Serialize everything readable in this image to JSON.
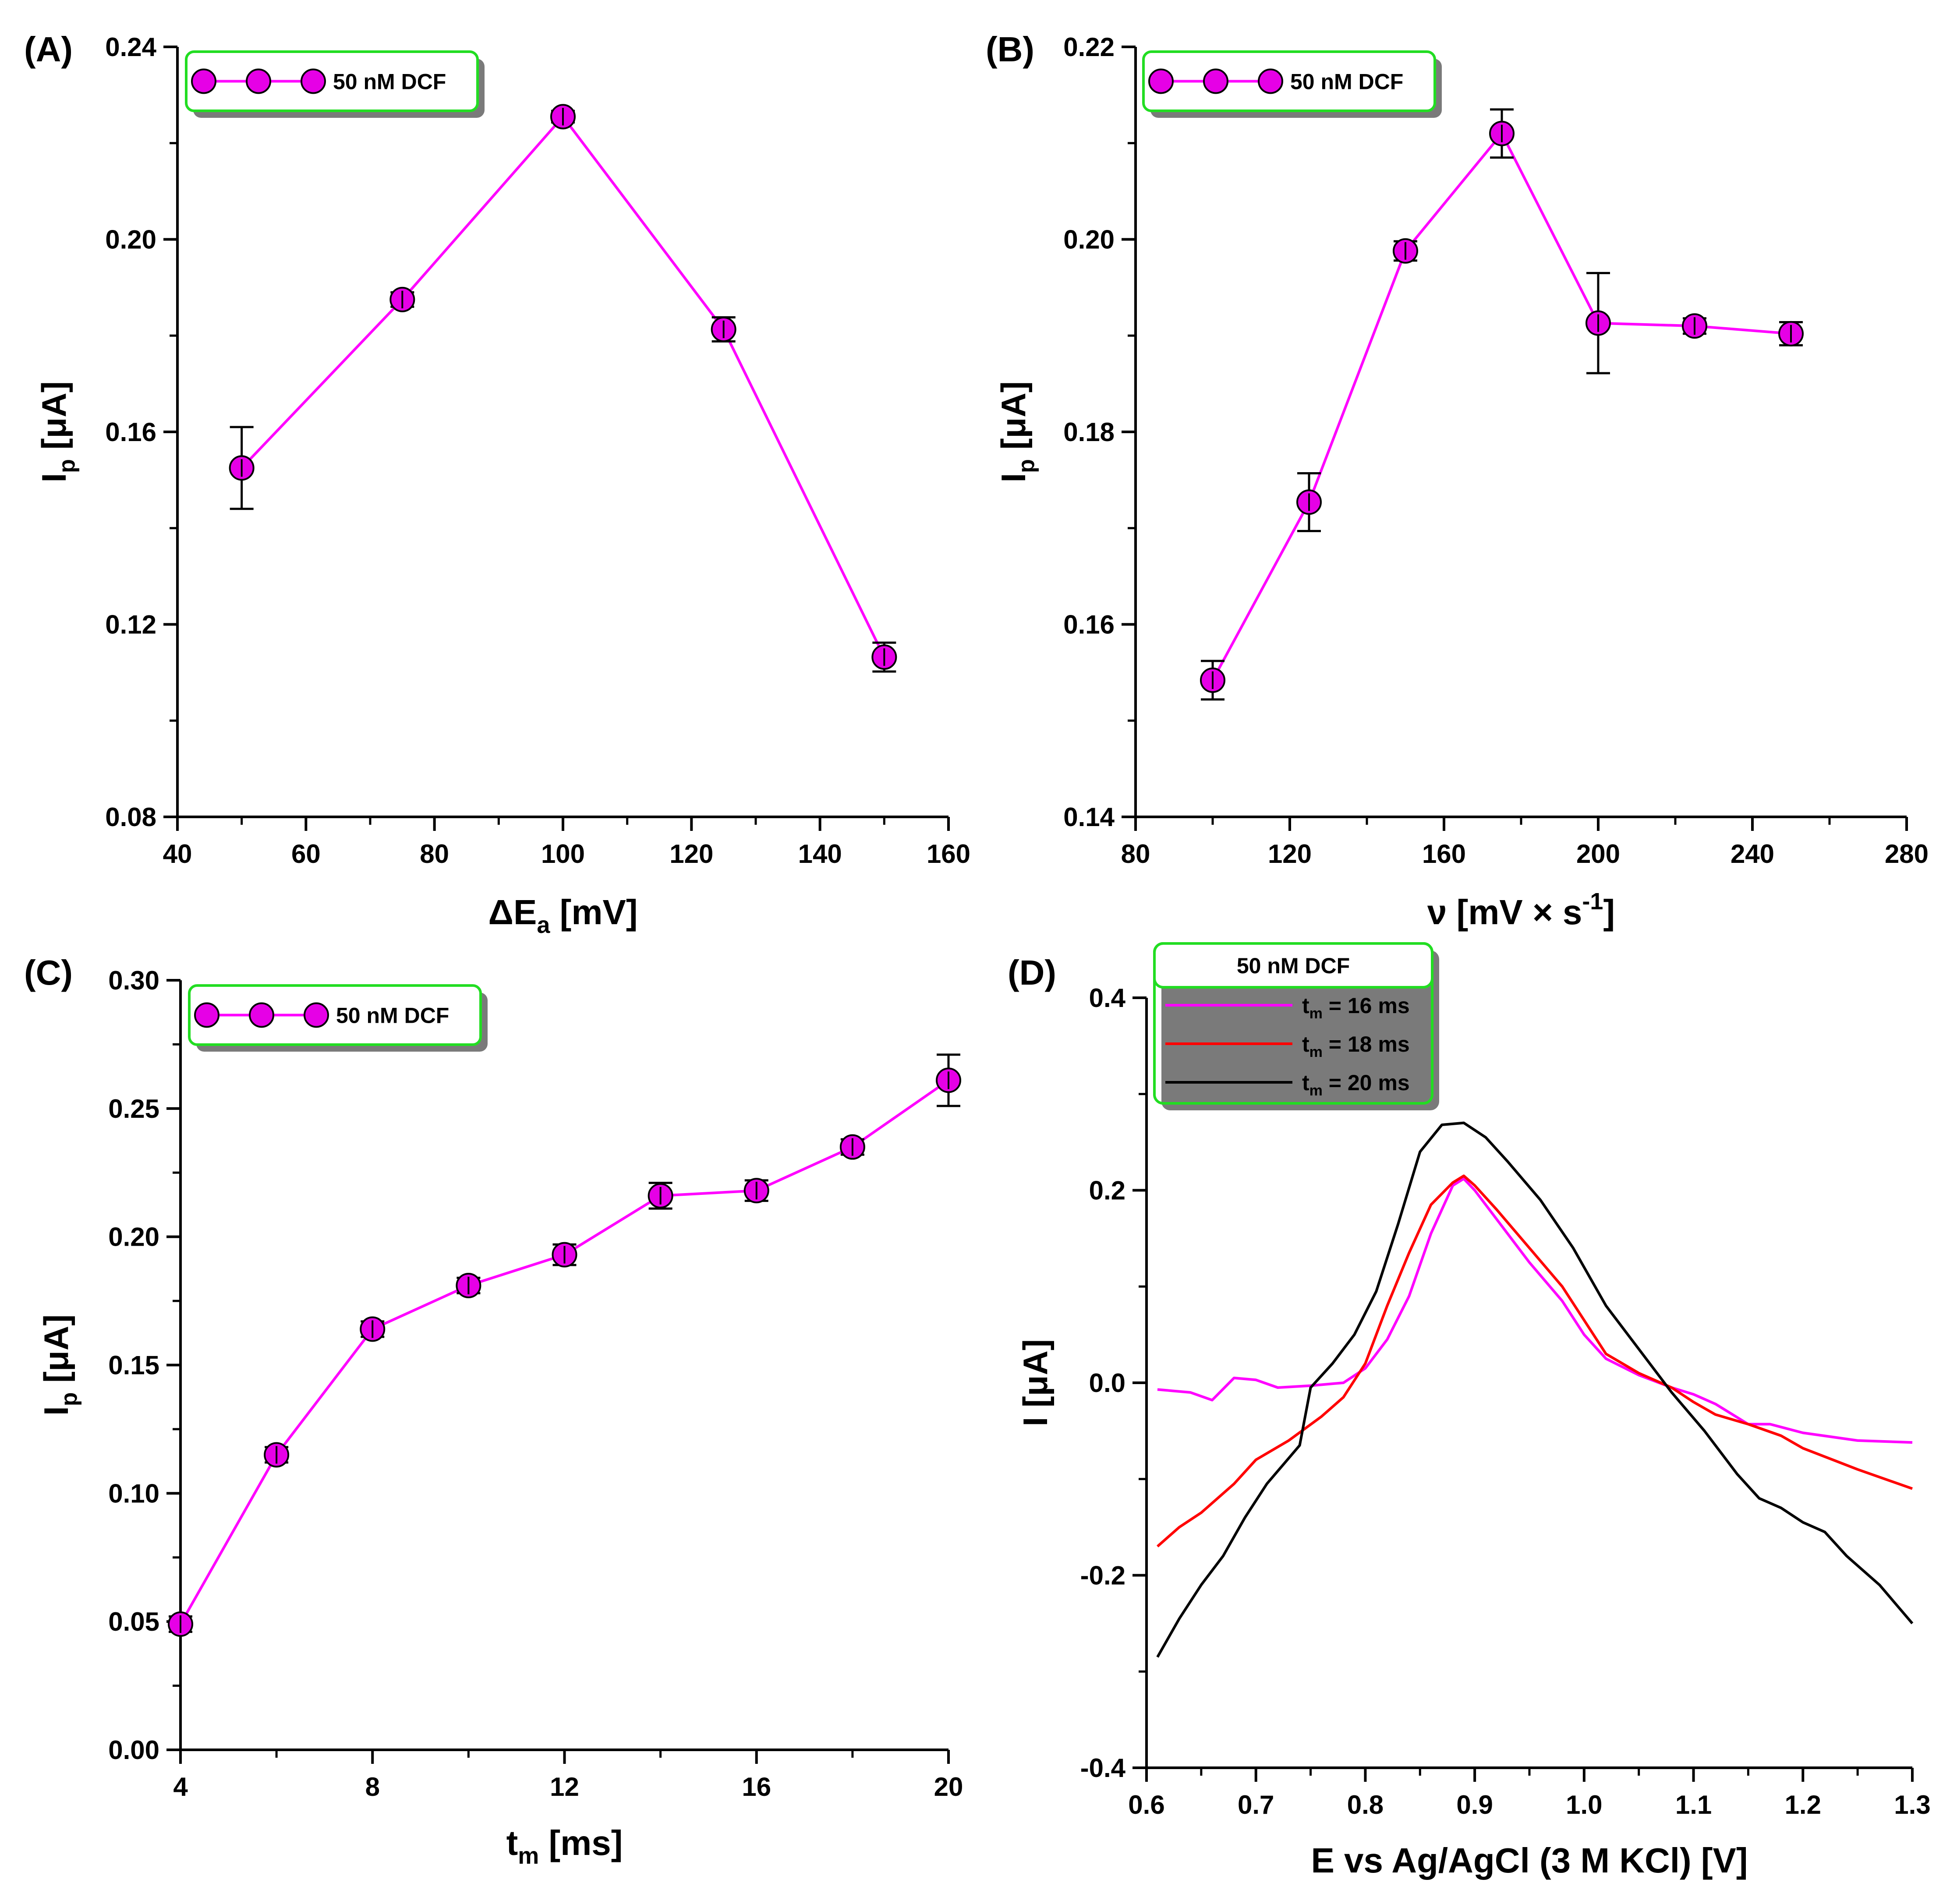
{
  "chart_data": [
    {
      "id": "A",
      "panel_label": "(A)",
      "type": "line",
      "x_label": {
        "base": "ΔE",
        "sub": "a",
        "rest": " [mV]"
      },
      "y_label": {
        "base": "I",
        "sub": "p",
        "rest": " [μA]"
      },
      "xlim": [
        40,
        160
      ],
      "ylim": [
        0.08,
        0.24
      ],
      "x_ticks": [
        40,
        60,
        80,
        100,
        120,
        140,
        160
      ],
      "x_tick_labels": [
        "40",
        "60",
        "80",
        "100",
        "120",
        "140",
        "160"
      ],
      "y_ticks": [
        0.08,
        0.12,
        0.16,
        0.2,
        0.24
      ],
      "y_tick_labels": [
        "0.08",
        "0.12",
        "0.16",
        "0.20",
        "0.24"
      ],
      "legend": [
        "50 nM DCF"
      ],
      "legend_position": "top-left",
      "series": [
        {
          "name": "50 nM DCF",
          "color": "#ff00ff",
          "marker_color": "#e600e6",
          "x": [
            50,
            75,
            100,
            125,
            150
          ],
          "y": [
            0.1525,
            0.1875,
            0.2255,
            0.1813,
            0.1132
          ],
          "err": [
            0.0085,
            0.0015,
            0.0012,
            0.0025,
            0.003
          ]
        }
      ]
    },
    {
      "id": "B",
      "panel_label": "(B)",
      "type": "line",
      "x_label": {
        "base": "ν [mV × s",
        "sup": "-1",
        "rest": "]"
      },
      "y_label": {
        "base": "I",
        "sub": "p",
        "rest": " [μA]"
      },
      "xlim": [
        80,
        280
      ],
      "ylim": [
        0.14,
        0.22
      ],
      "x_ticks": [
        80,
        120,
        160,
        200,
        240,
        280
      ],
      "x_tick_labels": [
        "80",
        "120",
        "160",
        "200",
        "240",
        "280"
      ],
      "y_ticks": [
        0.14,
        0.16,
        0.18,
        0.2,
        0.22
      ],
      "y_tick_labels": [
        "0.14",
        "0.16",
        "0.18",
        "0.20",
        "0.22"
      ],
      "legend": [
        "50 nM DCF"
      ],
      "legend_position": "top-left",
      "series": [
        {
          "name": "50 nM DCF",
          "color": "#ff00ff",
          "marker_color": "#e600e6",
          "x": [
            100,
            125,
            150,
            175,
            200,
            225,
            250
          ],
          "y": [
            0.1542,
            0.1727,
            0.1988,
            0.211,
            0.1913,
            0.191,
            0.1902
          ],
          "err": [
            0.002,
            0.003,
            0.001,
            0.0025,
            0.0052,
            0.0008,
            0.0012
          ]
        }
      ]
    },
    {
      "id": "C",
      "panel_label": "(C)",
      "type": "line",
      "x_label": {
        "base": "t",
        "sub": "m",
        "rest": " [ms]"
      },
      "y_label": {
        "base": "I",
        "sub": "p",
        "rest": " [μA]"
      },
      "xlim": [
        4,
        20
      ],
      "ylim": [
        0.0,
        0.3
      ],
      "x_ticks": [
        4,
        8,
        12,
        16,
        20
      ],
      "x_tick_labels": [
        "4",
        "8",
        "12",
        "16",
        "20"
      ],
      "y_ticks": [
        0.0,
        0.05,
        0.1,
        0.15,
        0.2,
        0.25,
        0.3
      ],
      "y_tick_labels": [
        "0.00",
        "0.05",
        "0.10",
        "0.15",
        "0.20",
        "0.25",
        "0.30"
      ],
      "legend": [
        "50 nM DCF"
      ],
      "legend_position": "top-left",
      "series": [
        {
          "name": "50 nM DCF",
          "color": "#ff00ff",
          "marker_color": "#e600e6",
          "x": [
            4,
            6,
            8,
            10,
            12,
            14,
            16,
            18,
            20
          ],
          "y": [
            0.049,
            0.115,
            0.164,
            0.181,
            0.193,
            0.216,
            0.218,
            0.235,
            0.261
          ],
          "err": [
            0.003,
            0.003,
            0.003,
            0.003,
            0.004,
            0.005,
            0.004,
            0.003,
            0.01
          ]
        }
      ]
    },
    {
      "id": "D",
      "panel_label": "(D)",
      "type": "line",
      "x_label": {
        "base": "E vs Ag/AgCl (3 M KCl) [V]"
      },
      "y_label": {
        "base": "I [μA]"
      },
      "xlim": [
        0.6,
        1.3
      ],
      "ylim": [
        -0.4,
        0.4
      ],
      "x_ticks": [
        0.6,
        0.7,
        0.8,
        0.9,
        1.0,
        1.1,
        1.2,
        1.3
      ],
      "x_tick_labels": [
        "0.6",
        "0.7",
        "0.8",
        "0.9",
        "1.0",
        "1.1",
        "1.2",
        "1.3"
      ],
      "y_ticks": [
        -0.4,
        -0.2,
        0.0,
        0.2,
        0.4
      ],
      "y_tick_labels": [
        "-0.4",
        "-0.2",
        "0.0",
        "0.2",
        "0.4"
      ],
      "legend_title": "50 nM DCF",
      "legend_position": "top-left",
      "series": [
        {
          "name": "t_m = 16 ms",
          "label_base": "t",
          "label_sub": "m",
          "label_rest": " = 16 ms",
          "color": "#ff00ff",
          "x": [
            0.61,
            0.64,
            0.66,
            0.68,
            0.7,
            0.72,
            0.75,
            0.78,
            0.8,
            0.82,
            0.84,
            0.86,
            0.88,
            0.89,
            0.9,
            0.92,
            0.95,
            0.98,
            1.0,
            1.02,
            1.05,
            1.08,
            1.1,
            1.12,
            1.15,
            1.17,
            1.2,
            1.25,
            1.3
          ],
          "y": [
            -0.007,
            -0.01,
            -0.018,
            0.005,
            0.003,
            -0.005,
            -0.003,
            0.0,
            0.015,
            0.045,
            0.09,
            0.155,
            0.205,
            0.212,
            0.2,
            0.17,
            0.125,
            0.085,
            0.05,
            0.025,
            0.008,
            -0.005,
            -0.012,
            -0.022,
            -0.043,
            -0.043,
            -0.052,
            -0.06,
            -0.062
          ]
        },
        {
          "name": "t_m = 18 ms",
          "label_base": "t",
          "label_sub": "m",
          "label_rest": " = 18 ms",
          "color": "#ff0000",
          "x": [
            0.61,
            0.63,
            0.65,
            0.68,
            0.7,
            0.73,
            0.76,
            0.78,
            0.8,
            0.82,
            0.84,
            0.86,
            0.88,
            0.89,
            0.9,
            0.92,
            0.95,
            0.98,
            1.0,
            1.02,
            1.05,
            1.08,
            1.1,
            1.12,
            1.15,
            1.18,
            1.2,
            1.25,
            1.3
          ],
          "y": [
            -0.17,
            -0.15,
            -0.135,
            -0.105,
            -0.08,
            -0.06,
            -0.035,
            -0.015,
            0.02,
            0.08,
            0.135,
            0.185,
            0.208,
            0.215,
            0.205,
            0.18,
            0.14,
            0.1,
            0.065,
            0.03,
            0.01,
            -0.005,
            -0.02,
            -0.033,
            -0.043,
            -0.055,
            -0.068,
            -0.09,
            -0.11
          ]
        },
        {
          "name": "t_m = 20 ms",
          "label_base": "t",
          "label_sub": "m",
          "label_rest": " = 20 ms",
          "color": "#000000",
          "x": [
            0.61,
            0.63,
            0.65,
            0.67,
            0.69,
            0.71,
            0.74,
            0.75,
            0.77,
            0.79,
            0.81,
            0.83,
            0.85,
            0.87,
            0.89,
            0.91,
            0.93,
            0.96,
            0.99,
            1.02,
            1.05,
            1.08,
            1.11,
            1.14,
            1.16,
            1.18,
            1.2,
            1.22,
            1.24,
            1.27,
            1.3
          ],
          "y": [
            -0.285,
            -0.245,
            -0.21,
            -0.18,
            -0.14,
            -0.105,
            -0.065,
            -0.005,
            0.02,
            0.05,
            0.095,
            0.165,
            0.24,
            0.268,
            0.27,
            0.255,
            0.23,
            0.19,
            0.14,
            0.08,
            0.035,
            -0.01,
            -0.05,
            -0.095,
            -0.12,
            -0.13,
            -0.145,
            -0.155,
            -0.18,
            -0.21,
            -0.25
          ]
        }
      ]
    }
  ]
}
